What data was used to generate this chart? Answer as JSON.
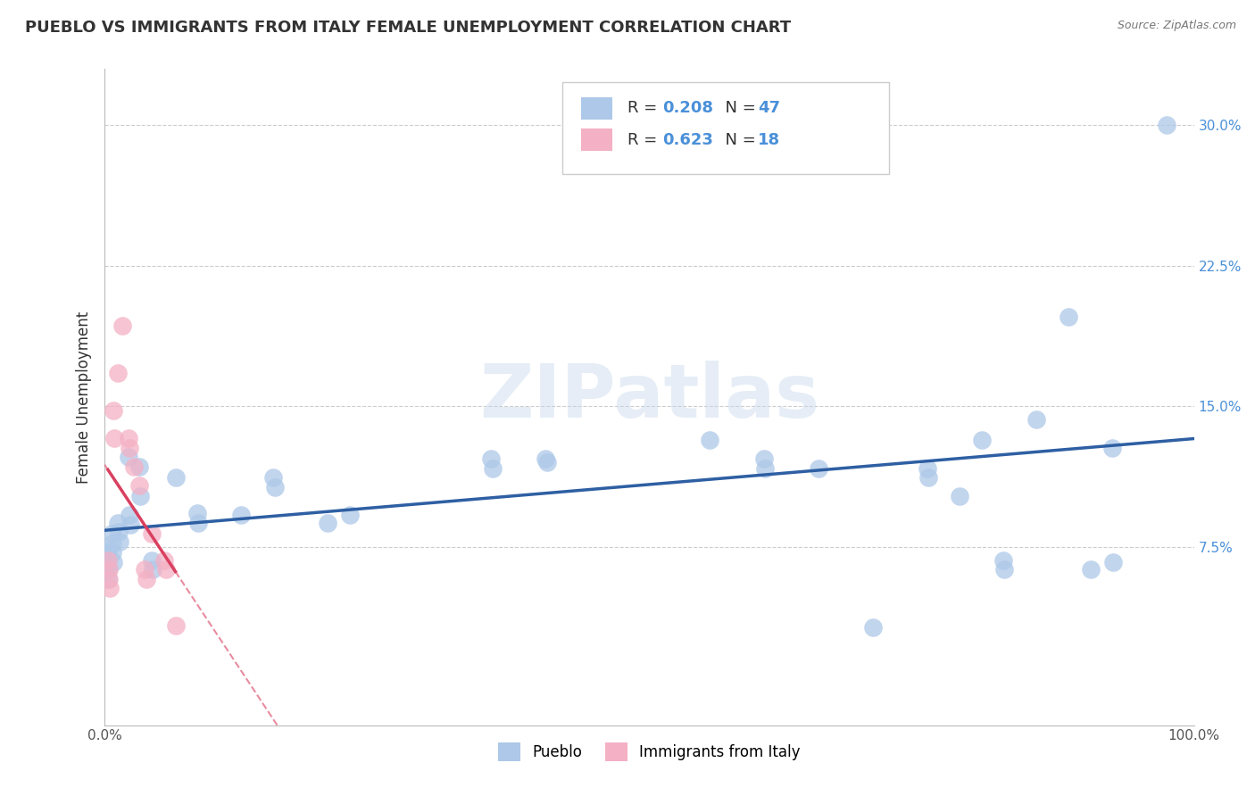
{
  "title": "PUEBLO VS IMMIGRANTS FROM ITALY FEMALE UNEMPLOYMENT CORRELATION CHART",
  "source": "Source: ZipAtlas.com",
  "ylabel": "Female Unemployment",
  "xlim": [
    0,
    1.0
  ],
  "ylim": [
    -0.02,
    0.33
  ],
  "xtick_vals": [
    0.0,
    0.25,
    0.5,
    0.75,
    1.0
  ],
  "xticklabels": [
    "0.0%",
    "",
    "",
    "",
    "100.0%"
  ],
  "ytick_vals": [
    0.0,
    0.075,
    0.15,
    0.225,
    0.3
  ],
  "pueblo_color": "#adc8e8",
  "italy_color": "#f4b0c4",
  "pueblo_line_color": "#2e5fa3",
  "italy_line_color": "#d94060",
  "pueblo_R": 0.208,
  "pueblo_N": 47,
  "italy_R": 0.623,
  "italy_N": 18,
  "watermark": "ZIPatlas",
  "legend_labels": [
    "Pueblo",
    "Immigrants from Italy"
  ],
  "pueblo_points": [
    [
      0.003,
      0.073
    ],
    [
      0.003,
      0.068
    ],
    [
      0.003,
      0.063
    ],
    [
      0.003,
      0.058
    ],
    [
      0.006,
      0.082
    ],
    [
      0.007,
      0.077
    ],
    [
      0.007,
      0.072
    ],
    [
      0.008,
      0.067
    ],
    [
      0.012,
      0.088
    ],
    [
      0.013,
      0.083
    ],
    [
      0.014,
      0.078
    ],
    [
      0.022,
      0.123
    ],
    [
      0.023,
      0.092
    ],
    [
      0.024,
      0.087
    ],
    [
      0.032,
      0.118
    ],
    [
      0.033,
      0.102
    ],
    [
      0.043,
      0.068
    ],
    [
      0.044,
      0.063
    ],
    [
      0.065,
      0.112
    ],
    [
      0.085,
      0.093
    ],
    [
      0.086,
      0.088
    ],
    [
      0.125,
      0.092
    ],
    [
      0.155,
      0.112
    ],
    [
      0.156,
      0.107
    ],
    [
      0.205,
      0.088
    ],
    [
      0.225,
      0.092
    ],
    [
      0.355,
      0.122
    ],
    [
      0.356,
      0.117
    ],
    [
      0.405,
      0.122
    ],
    [
      0.406,
      0.12
    ],
    [
      0.555,
      0.132
    ],
    [
      0.605,
      0.122
    ],
    [
      0.606,
      0.117
    ],
    [
      0.655,
      0.117
    ],
    [
      0.705,
      0.032
    ],
    [
      0.755,
      0.117
    ],
    [
      0.756,
      0.112
    ],
    [
      0.785,
      0.102
    ],
    [
      0.805,
      0.132
    ],
    [
      0.825,
      0.068
    ],
    [
      0.826,
      0.063
    ],
    [
      0.855,
      0.143
    ],
    [
      0.885,
      0.198
    ],
    [
      0.905,
      0.063
    ],
    [
      0.925,
      0.128
    ],
    [
      0.926,
      0.067
    ],
    [
      0.975,
      0.3
    ]
  ],
  "italy_points": [
    [
      0.003,
      0.068
    ],
    [
      0.004,
      0.063
    ],
    [
      0.004,
      0.058
    ],
    [
      0.005,
      0.053
    ],
    [
      0.008,
      0.148
    ],
    [
      0.009,
      0.133
    ],
    [
      0.012,
      0.168
    ],
    [
      0.016,
      0.193
    ],
    [
      0.022,
      0.133
    ],
    [
      0.023,
      0.128
    ],
    [
      0.027,
      0.118
    ],
    [
      0.032,
      0.108
    ],
    [
      0.037,
      0.063
    ],
    [
      0.038,
      0.058
    ],
    [
      0.043,
      0.082
    ],
    [
      0.055,
      0.068
    ],
    [
      0.056,
      0.063
    ],
    [
      0.065,
      0.033
    ]
  ]
}
